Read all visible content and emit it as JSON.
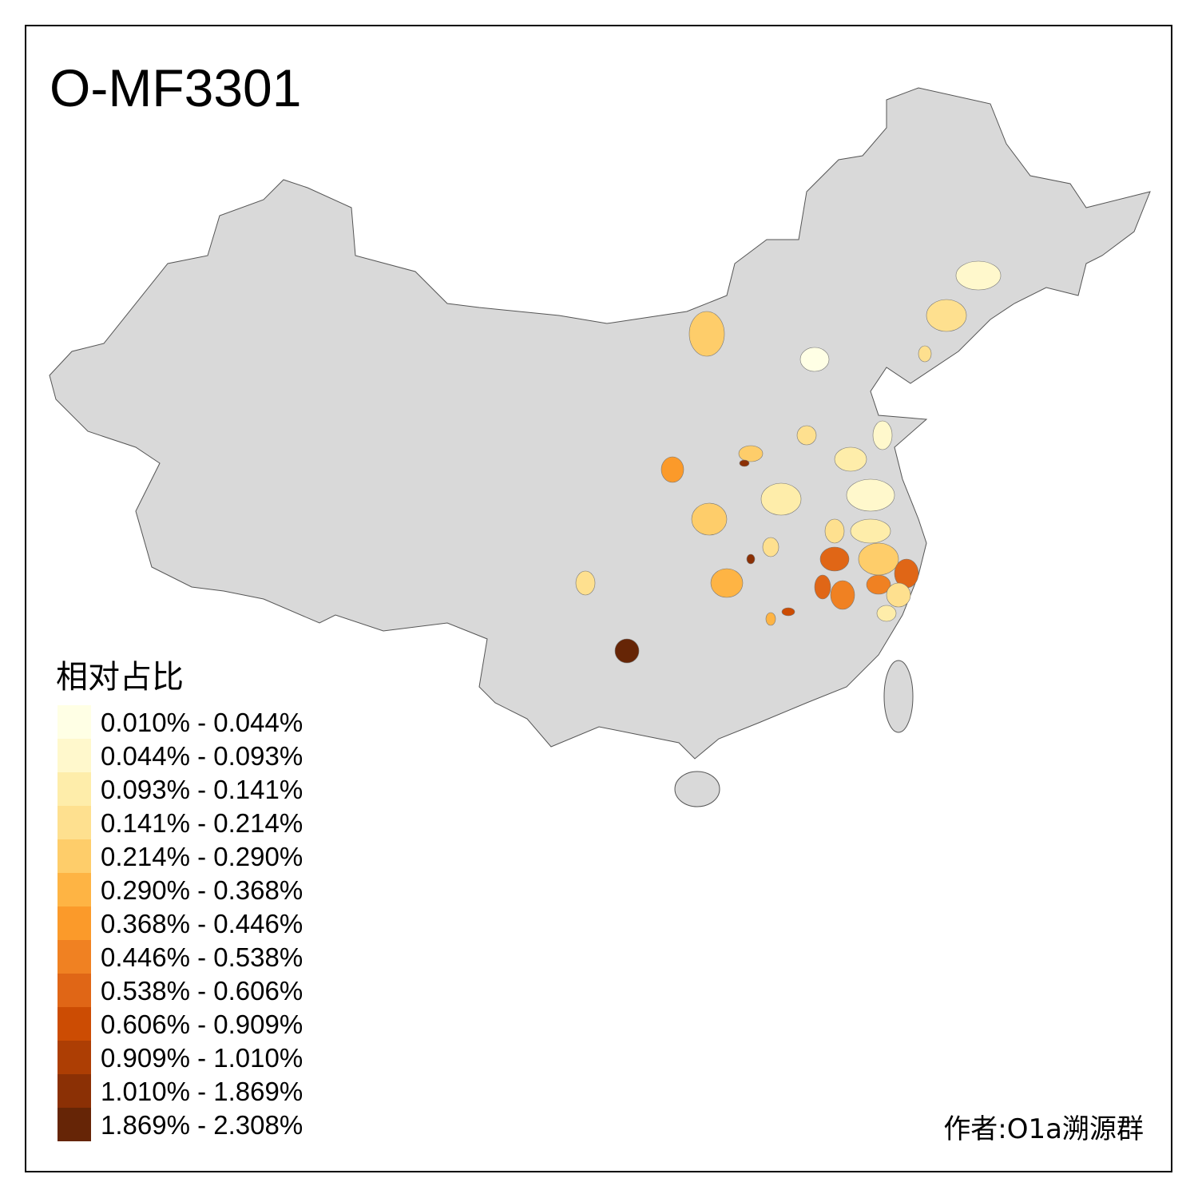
{
  "title": "O-MF3301",
  "legend": {
    "title": "相对占比",
    "items": [
      {
        "label": "0.010% - 0.044%",
        "color": "#FFFFE5"
      },
      {
        "label": "0.044% - 0.093%",
        "color": "#FFF8CC"
      },
      {
        "label": "0.093% - 0.141%",
        "color": "#FEEDAA"
      },
      {
        "label": "0.141% - 0.214%",
        "color": "#FEE08F"
      },
      {
        "label": "0.214% - 0.290%",
        "color": "#FECD6A"
      },
      {
        "label": "0.290% - 0.368%",
        "color": "#FEB444"
      },
      {
        "label": "0.368% - 0.446%",
        "color": "#FB9A2A"
      },
      {
        "label": "0.446% - 0.538%",
        "color": "#F08122"
      },
      {
        "label": "0.538% - 0.606%",
        "color": "#E06616"
      },
      {
        "label": "0.606% - 0.909%",
        "color": "#CC4C03"
      },
      {
        "label": "0.909% - 1.010%",
        "color": "#AD3E04"
      },
      {
        "label": "1.010% - 1.869%",
        "color": "#8B3005"
      },
      {
        "label": "1.869% - 2.308%",
        "color": "#662506"
      }
    ]
  },
  "map": {
    "base_color": "#D9D9D9",
    "border_color": "#555555"
  },
  "author": "作者:O1a溯源群"
}
